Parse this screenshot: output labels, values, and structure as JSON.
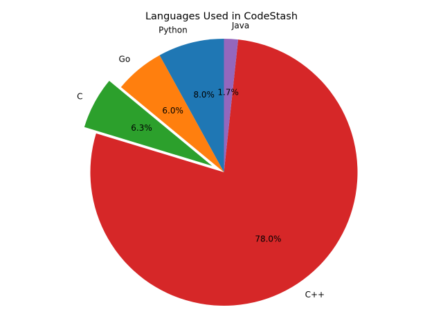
{
  "chart_data": {
    "type": "pie",
    "title": "Languages Used in CodeStash",
    "start_angle_deg": 90,
    "direction": "counterclockwise",
    "slices": [
      {
        "label": "Python",
        "value": 8.0,
        "pct_label": "8.0%",
        "color": "#1f77b4",
        "exploded": false
      },
      {
        "label": "Go",
        "value": 6.0,
        "pct_label": "6.0%",
        "color": "#ff7f0e",
        "exploded": false
      },
      {
        "label": "C",
        "value": 6.3,
        "pct_label": "6.3%",
        "color": "#2ca02c",
        "exploded": true
      },
      {
        "label": "C++",
        "value": 78.0,
        "pct_label": "78.0%",
        "color": "#d62728",
        "exploded": false
      },
      {
        "label": "Java",
        "value": 1.7,
        "pct_label": "1.7%",
        "color": "#9467bd",
        "exploded": false
      }
    ]
  }
}
